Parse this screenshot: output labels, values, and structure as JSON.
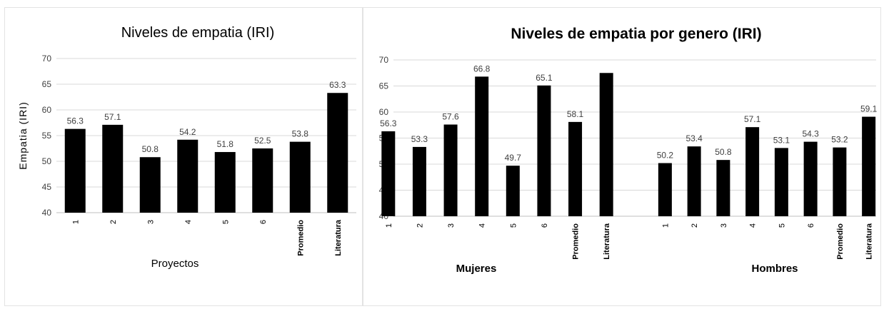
{
  "chart_data": [
    {
      "type": "bar",
      "title": "Niveles de empatia (IRI)",
      "ylabel": "Empatia (IRI)",
      "xlabel": "Proyectos",
      "ylim": [
        40,
        70
      ],
      "yticks": [
        40,
        45,
        50,
        55,
        60,
        65,
        70
      ],
      "grid": true,
      "categories": [
        "1",
        "2",
        "3",
        "4",
        "5",
        "6",
        "Promedio",
        "Literatura"
      ],
      "values": [
        56.3,
        57.1,
        50.8,
        54.2,
        51.8,
        52.5,
        53.8,
        63.3
      ],
      "data_labels": [
        "56.3",
        "57.1",
        "50.8",
        "54.2",
        "51.8",
        "52.5",
        "53.8",
        "63.3"
      ]
    },
    {
      "type": "bar",
      "title": "Niveles de empatia por genero (IRI)",
      "ylim": [
        40,
        70
      ],
      "yticks": [
        40,
        45,
        50,
        55,
        60,
        65,
        70
      ],
      "grid": true,
      "groups": [
        {
          "name": "Mujeres",
          "categories": [
            "1",
            "2",
            "3",
            "4",
            "5",
            "6",
            "Promedio",
            "Literatura"
          ],
          "values": [
            56.3,
            53.3,
            57.6,
            66.8,
            49.7,
            65.1,
            58.1,
            67.5
          ],
          "data_labels": [
            "56.3",
            "53.3",
            "57.6",
            "66.8",
            "49.7",
            "65.1",
            "58.1",
            ""
          ]
        },
        {
          "name": "Hombres",
          "categories": [
            "1",
            "2",
            "3",
            "4",
            "5",
            "6",
            "Promedio",
            "Literatura"
          ],
          "values": [
            50.2,
            53.4,
            50.8,
            57.1,
            53.1,
            54.3,
            53.2,
            59.1
          ],
          "data_labels": [
            "50.2",
            "53.4",
            "50.8",
            "57.1",
            "53.1",
            "54.3",
            "53.2",
            "59.1"
          ]
        }
      ]
    }
  ],
  "colors": {
    "bar": "#000000",
    "grid": "#d9d9d9",
    "text": "#404040",
    "axis": "#bfbfbf"
  }
}
